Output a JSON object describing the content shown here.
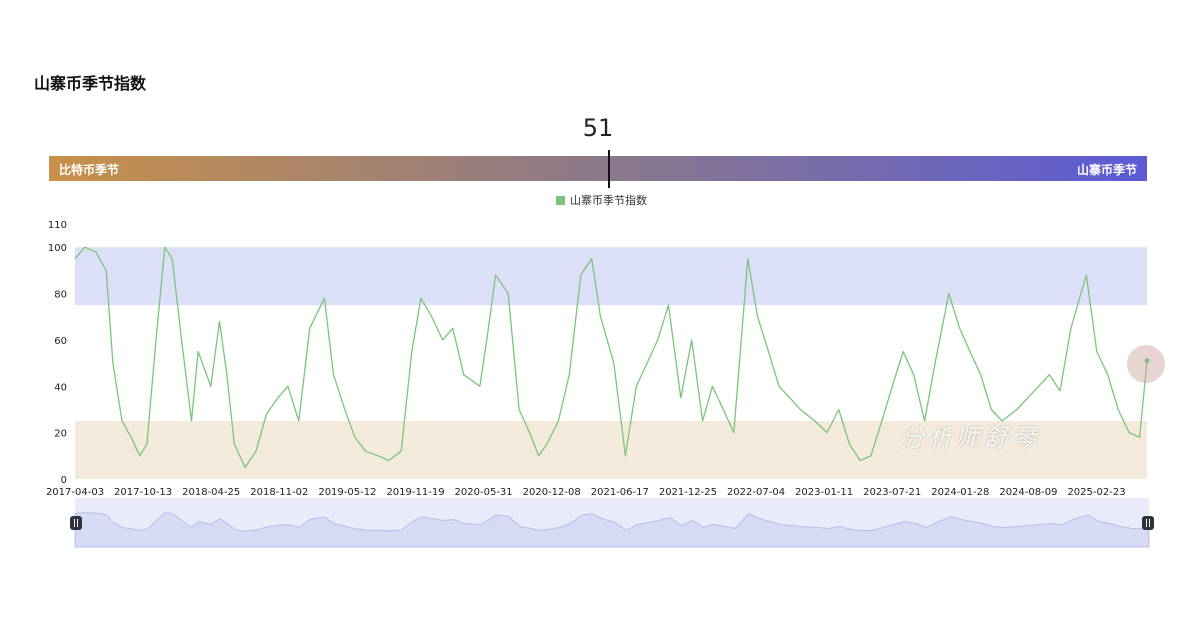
{
  "header": {
    "title": "山寨币季节指数"
  },
  "gauge": {
    "current_value": "51",
    "value_number": 51,
    "left_label": "比特币季节",
    "right_label": "山寨币季节",
    "gradient_start": "#c8914a",
    "gradient_end": "#5b5bd6"
  },
  "watermark": {
    "text": "分析师舒琴"
  },
  "chart_data": {
    "type": "line",
    "title": "",
    "xlabel": "",
    "ylabel": "",
    "ylim": [
      0,
      110
    ],
    "yticks": [
      0,
      20,
      40,
      60,
      80,
      100,
      110
    ],
    "xlim": [
      "2017-04-03",
      "2025-08-15"
    ],
    "xtick_labels": [
      "2017-04-03",
      "2017-10-13",
      "2018-04-25",
      "2018-11-02",
      "2019-05-12",
      "2019-11-19",
      "2020-05-31",
      "2020-12-08",
      "2021-06-17",
      "2021-12-25",
      "2022-07-04",
      "2023-01-11",
      "2023-07-21",
      "2024-01-28",
      "2024-08-09",
      "2025-02-23"
    ],
    "legend": {
      "position": "top-center",
      "entries": [
        "山寨币季节指数"
      ]
    },
    "bands": [
      {
        "from": 75,
        "to": 100,
        "color": "#dcdff8"
      },
      {
        "from": 0,
        "to": 25,
        "color": "#f3eadb"
      }
    ],
    "grid": false,
    "series": [
      {
        "name": "山寨币季节指数",
        "color": "#7cc47c",
        "x": [
          "2017-04-03",
          "2017-05-01",
          "2017-06-01",
          "2017-07-01",
          "2017-07-20",
          "2017-08-15",
          "2017-09-10",
          "2017-10-05",
          "2017-10-25",
          "2017-11-20",
          "2017-12-15",
          "2018-01-05",
          "2018-02-01",
          "2018-03-01",
          "2018-03-20",
          "2018-04-25",
          "2018-05-20",
          "2018-06-10",
          "2018-07-01",
          "2018-08-01",
          "2018-09-01",
          "2018-10-01",
          "2018-11-02",
          "2018-12-01",
          "2019-01-01",
          "2019-02-01",
          "2019-03-15",
          "2019-04-10",
          "2019-05-12",
          "2019-06-10",
          "2019-07-10",
          "2019-08-15",
          "2019-09-15",
          "2019-10-20",
          "2019-11-19",
          "2019-12-15",
          "2020-01-15",
          "2020-02-15",
          "2020-03-15",
          "2020-04-15",
          "2020-05-31",
          "2020-06-20",
          "2020-07-15",
          "2020-08-20",
          "2020-09-20",
          "2020-10-20",
          "2020-11-15",
          "2020-12-08",
          "2021-01-10",
          "2021-02-10",
          "2021-03-15",
          "2021-04-15",
          "2021-05-10",
          "2021-06-17",
          "2021-07-20",
          "2021-08-20",
          "2021-09-20",
          "2021-10-20",
          "2021-11-20",
          "2021-12-25",
          "2022-01-25",
          "2022-02-25",
          "2022-03-25",
          "2022-04-25",
          "2022-05-25",
          "2022-07-04",
          "2022-08-01",
          "2022-09-01",
          "2022-10-01",
          "2022-11-01",
          "2022-12-01",
          "2023-01-11",
          "2023-02-15",
          "2023-03-20",
          "2023-04-20",
          "2023-05-20",
          "2023-06-20",
          "2023-07-21",
          "2023-08-20",
          "2023-09-20",
          "2023-10-20",
          "2023-11-20",
          "2023-12-20",
          "2024-01-28",
          "2024-02-28",
          "2024-03-28",
          "2024-04-28",
          "2024-05-28",
          "2024-06-28",
          "2024-08-09",
          "2024-09-09",
          "2024-10-10",
          "2024-11-10",
          "2024-12-10",
          "2025-01-10",
          "2025-02-23",
          "2025-03-25",
          "2025-04-25",
          "2025-05-25",
          "2025-06-25",
          "2025-07-25",
          "2025-08-15"
        ],
        "y": [
          95,
          100,
          98,
          90,
          50,
          25,
          18,
          10,
          15,
          60,
          100,
          95,
          60,
          25,
          55,
          40,
          68,
          45,
          15,
          5,
          12,
          28,
          35,
          40,
          25,
          65,
          78,
          45,
          30,
          18,
          12,
          10,
          8,
          12,
          55,
          78,
          70,
          60,
          65,
          45,
          40,
          60,
          88,
          80,
          30,
          20,
          10,
          15,
          25,
          45,
          88,
          95,
          70,
          50,
          10,
          40,
          50,
          60,
          75,
          35,
          60,
          25,
          40,
          30,
          20,
          95,
          70,
          55,
          40,
          35,
          30,
          25,
          20,
          30,
          15,
          8,
          10,
          25,
          40,
          55,
          45,
          25,
          50,
          80,
          65,
          55,
          45,
          30,
          25,
          30,
          35,
          40,
          45,
          38,
          65,
          88,
          55,
          45,
          30,
          20,
          18,
          51
        ]
      }
    ]
  },
  "navigator": {
    "handle_glyph": "⏸"
  }
}
